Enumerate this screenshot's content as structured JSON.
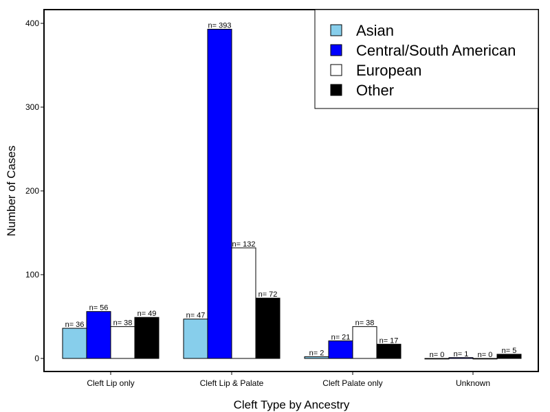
{
  "chart_data": {
    "type": "bar",
    "title": "",
    "xlabel": "Cleft Type by Ancestry",
    "ylabel": "Number of Cases",
    "categories": [
      "Cleft Lip only",
      "Cleft Lip & Palate",
      "Cleft Palate only",
      "Unknown"
    ],
    "series": [
      {
        "name": "Asian",
        "color": "#87ceeb",
        "values": [
          36,
          47,
          2,
          0
        ]
      },
      {
        "name": "Central/South American",
        "color": "#0000ff",
        "values": [
          56,
          393,
          21,
          1
        ]
      },
      {
        "name": "European",
        "color": "#ffffff",
        "values": [
          38,
          132,
          38,
          0
        ]
      },
      {
        "name": "Other",
        "color": "#000000",
        "values": [
          49,
          72,
          17,
          5
        ]
      }
    ],
    "data_label_prefix": "n= ",
    "ylim": [
      -15,
      412
    ],
    "yticks": [
      0,
      100,
      200,
      300,
      400
    ],
    "grid": false,
    "legend_position": "top-right"
  }
}
